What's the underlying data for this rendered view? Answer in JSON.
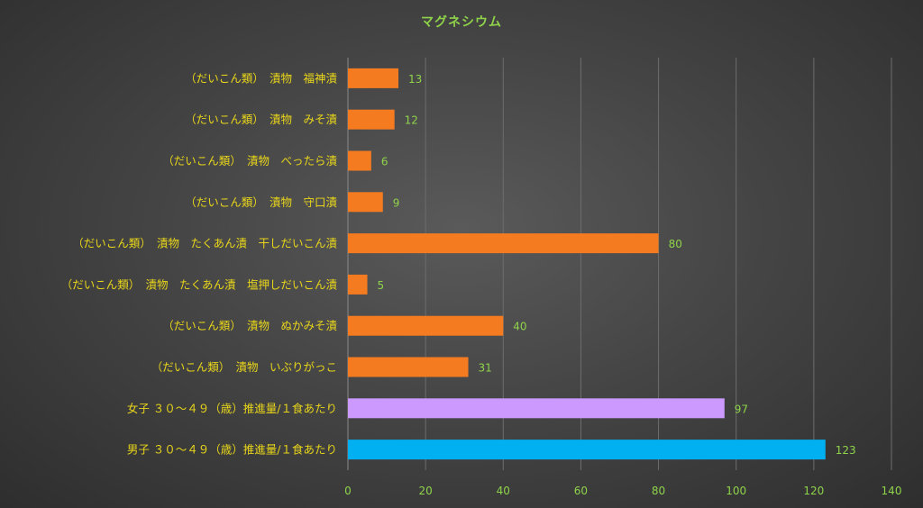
{
  "chart_data": {
    "type": "bar",
    "orientation": "horizontal",
    "title": "マグネシウム",
    "categories": [
      "（だいこん類）　漬物　福神漬",
      "（だいこん類）　漬物　みそ漬",
      "（だいこん類）　漬物　べったら漬",
      "（だいこん類）　漬物　守口漬",
      "（だいこん類）　漬物　たくあん漬　干しだいこん漬",
      "（だいこん類）　漬物　たくあん漬　塩押しだいこん漬",
      "（だいこん類）　漬物　ぬかみそ漬",
      "（だいこん類）　漬物　いぶりがっこ",
      "女子 ３０～４９（歳）推進量/１食あたり",
      "男子 ３０～４９（歳）推進量/１食あたり"
    ],
    "values": [
      13,
      12,
      6,
      9,
      80,
      5,
      40,
      31,
      97,
      123
    ],
    "bar_colors": [
      "#f47b20",
      "#f47b20",
      "#f47b20",
      "#f47b20",
      "#f47b20",
      "#f47b20",
      "#f47b20",
      "#f47b20",
      "#cc99ff",
      "#00b0f0"
    ],
    "xlim": [
      0,
      140
    ],
    "xticks": [
      0,
      20,
      40,
      60,
      80,
      100,
      120,
      140
    ],
    "grid": true,
    "legend": "none"
  }
}
